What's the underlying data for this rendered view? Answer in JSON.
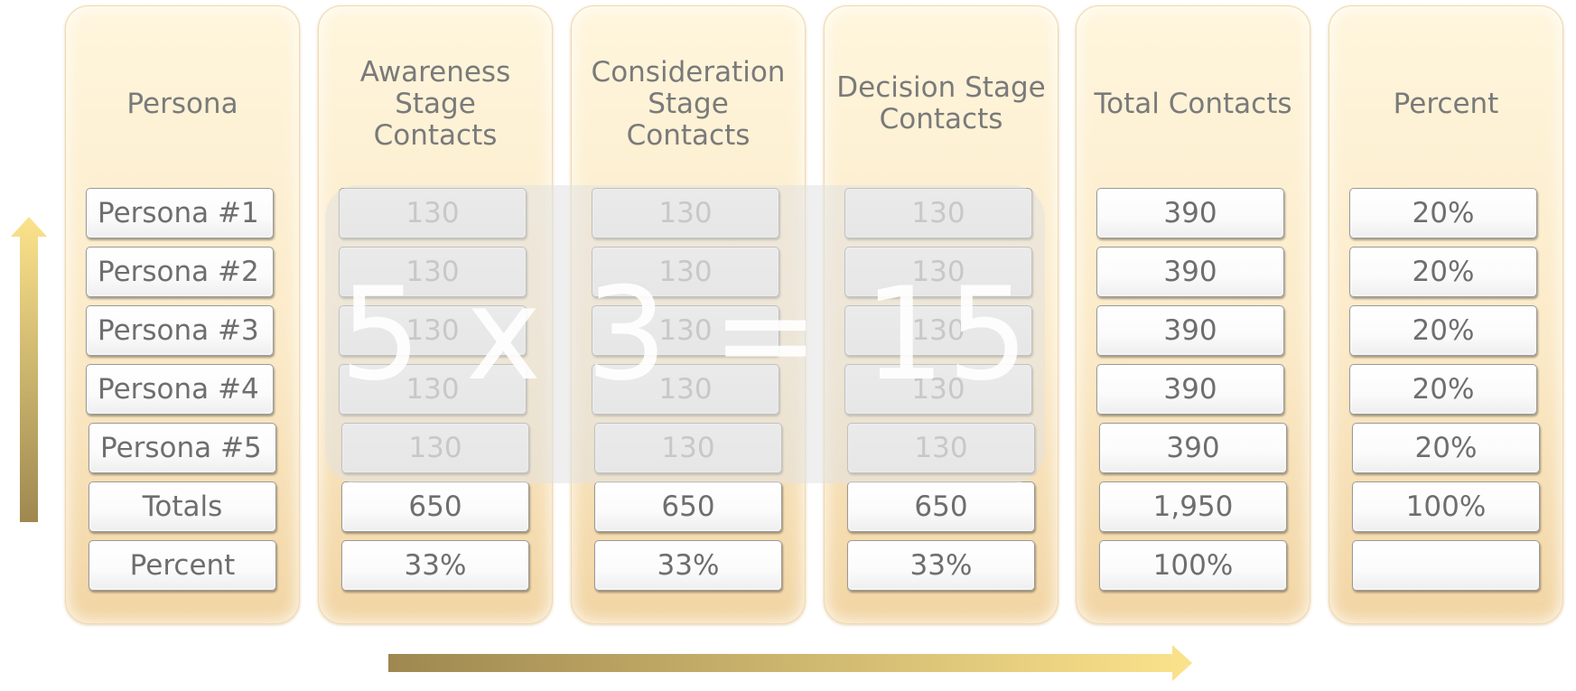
{
  "columns": [
    {
      "header": "Persona",
      "cells": [
        "Persona #1",
        "Persona #2",
        "Persona #3",
        "Persona #4",
        "Persona #5",
        "Totals",
        "Percent"
      ]
    },
    {
      "header": "Awareness\nStage\nContacts",
      "cells": [
        "130",
        "130",
        "130",
        "130",
        "130",
        "650",
        "33%"
      ]
    },
    {
      "header": "Consideration\nStage\nContacts",
      "cells": [
        "130",
        "130",
        "130",
        "130",
        "130",
        "650",
        "33%"
      ]
    },
    {
      "header": "Decision Stage\nContacts",
      "cells": [
        "130",
        "130",
        "130",
        "130",
        "130",
        "650",
        "33%"
      ]
    },
    {
      "header": "Total Contacts",
      "cells": [
        "390",
        "390",
        "390",
        "390",
        "390",
        "1,950",
        "100%"
      ]
    },
    {
      "header": "Percent",
      "cells": [
        "20%",
        "20%",
        "20%",
        "20%",
        "20%",
        "100%",
        ""
      ]
    }
  ],
  "overlay": {
    "equation": "5 x 3 = 15"
  },
  "colors": {
    "arrow_light": "#fbe38c",
    "arrow_dark": "#9e8850",
    "column_fill": "#fbeac8"
  }
}
